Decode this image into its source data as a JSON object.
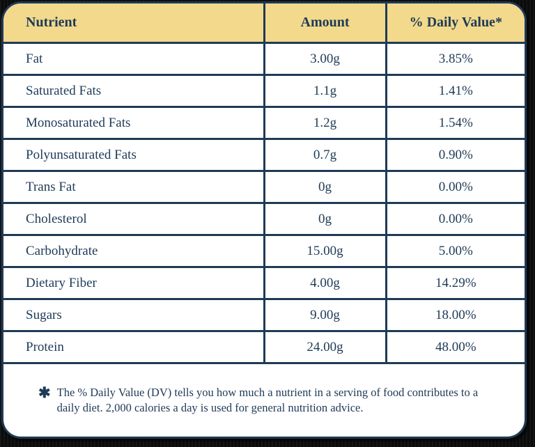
{
  "table": {
    "columns": [
      "Nutrient",
      "Amount",
      "% Daily Value*"
    ],
    "rows": [
      {
        "nutrient": "Fat",
        "amount": "3.00g",
        "dv": "3.85%"
      },
      {
        "nutrient": "Saturated Fats",
        "amount": "1.1g",
        "dv": "1.41%"
      },
      {
        "nutrient": "Monosaturated Fats",
        "amount": "1.2g",
        "dv": "1.54%"
      },
      {
        "nutrient": "Polyunsaturated Fats",
        "amount": "0.7g",
        "dv": "0.90%"
      },
      {
        "nutrient": "Trans Fat",
        "amount": "0g",
        "dv": "0.00%"
      },
      {
        "nutrient": "Cholesterol",
        "amount": "0g",
        "dv": "0.00%"
      },
      {
        "nutrient": "Carbohydrate",
        "amount": "15.00g",
        "dv": "5.00%"
      },
      {
        "nutrient": "Dietary Fiber",
        "amount": "4.00g",
        "dv": "14.29%"
      },
      {
        "nutrient": "Sugars",
        "amount": "9.00g",
        "dv": "18.00%"
      },
      {
        "nutrient": "Protein",
        "amount": "24.00g",
        "dv": "48.00%"
      }
    ]
  },
  "footnote": {
    "marker": "✱",
    "text": "The % Daily Value (DV) tells you how much a nutrient in a serving of food contributes to a daily diet. 2,000 calories a day is used for general nutrition advice."
  },
  "colors": {
    "header_bg": "#f2d98c",
    "navy": "#1e3a56",
    "card_bg": "#ffffff",
    "page_bg": "#0b0b0b"
  }
}
